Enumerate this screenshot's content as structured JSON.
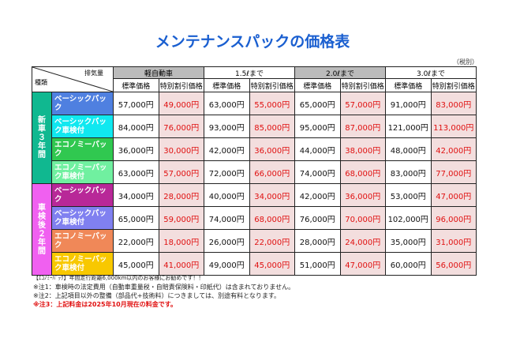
{
  "title": "メンテナンスパックの価格表",
  "tax_note": "（税別）",
  "header": {
    "corner_top": "排気量",
    "corner_bottom": "種類",
    "classes": [
      "軽自動車",
      "1.5ℓまで",
      "2.0ℓまで",
      "3.0ℓまで"
    ],
    "standard": "標準価格",
    "special": "特別割引価格"
  },
  "colors": {
    "title": "#1a5fd0",
    "discount_text": "#e01010",
    "new_car_group": "#10b890",
    "inspection_group": "#f060f0"
  },
  "groups": [
    {
      "label": "新車３年間",
      "rows": [
        {
          "name": "ベーシックパック",
          "color": "#4f80e0",
          "prices": [
            "57,000円",
            "49,000円",
            "63,000円",
            "55,000円",
            "65,000円",
            "57,000円",
            "91,000円",
            "83,000円"
          ]
        },
        {
          "name": "ベーシックパック車検付",
          "color": "#10e8f0",
          "prices": [
            "84,000円",
            "76,000円",
            "93,000円",
            "85,000円",
            "95,000円",
            "87,000円",
            "121,000円",
            "113,000円"
          ]
        },
        {
          "name": "エコノミーパック",
          "color": "#30c850",
          "prices": [
            "36,000円",
            "30,000円",
            "42,000円",
            "36,000円",
            "44,000円",
            "38,000円",
            "48,000円",
            "42,000円"
          ]
        },
        {
          "name": "エコノミーパック車検付",
          "color": "#70f0a0",
          "prices": [
            "63,000円",
            "57,000円",
            "72,000円",
            "66,000円",
            "74,000円",
            "68,000円",
            "83,000円",
            "77,000円"
          ]
        }
      ]
    },
    {
      "label": "車検後２年間",
      "rows": [
        {
          "name": "ベーシックパック",
          "color": "#b82898",
          "prices": [
            "34,000円",
            "28,000円",
            "40,000円",
            "34,000円",
            "42,000円",
            "36,000円",
            "53,000円",
            "47,000円"
          ]
        },
        {
          "name": "ベーシックパック車検付",
          "color": "#8080f0",
          "prices": [
            "65,000円",
            "59,000円",
            "74,000円",
            "68,000円",
            "76,000円",
            "70,000円",
            "102,000円",
            "96,000円"
          ]
        },
        {
          "name": "エコノミーパック",
          "color": "#f08858",
          "prices": [
            "22,000円",
            "18,000円",
            "26,000円",
            "22,000円",
            "28,000円",
            "24,000円",
            "35,000円",
            "31,000円"
          ]
        },
        {
          "name": "エコノミーパック車検付",
          "color": "#f8c800",
          "prices": [
            "45,000円",
            "41,000円",
            "49,000円",
            "45,000円",
            "51,000円",
            "47,000円",
            "60,000円",
            "56,000円"
          ]
        }
      ]
    }
  ],
  "notes": [
    "【ｴｺﾉﾐｰﾊﾟｯｸ】年間走行距離6,000km以内のお客様にお勧めです！！",
    "※注1：車検時の法定費用（自動車重量税・自賠責保険料・印紙代）は含まれておりません。",
    "※注2：上記項目以外の整備（部品代+技術料）につきましては、別途有料となります。",
    "※注3：上記料金は2025年10月現在の料金です。"
  ]
}
